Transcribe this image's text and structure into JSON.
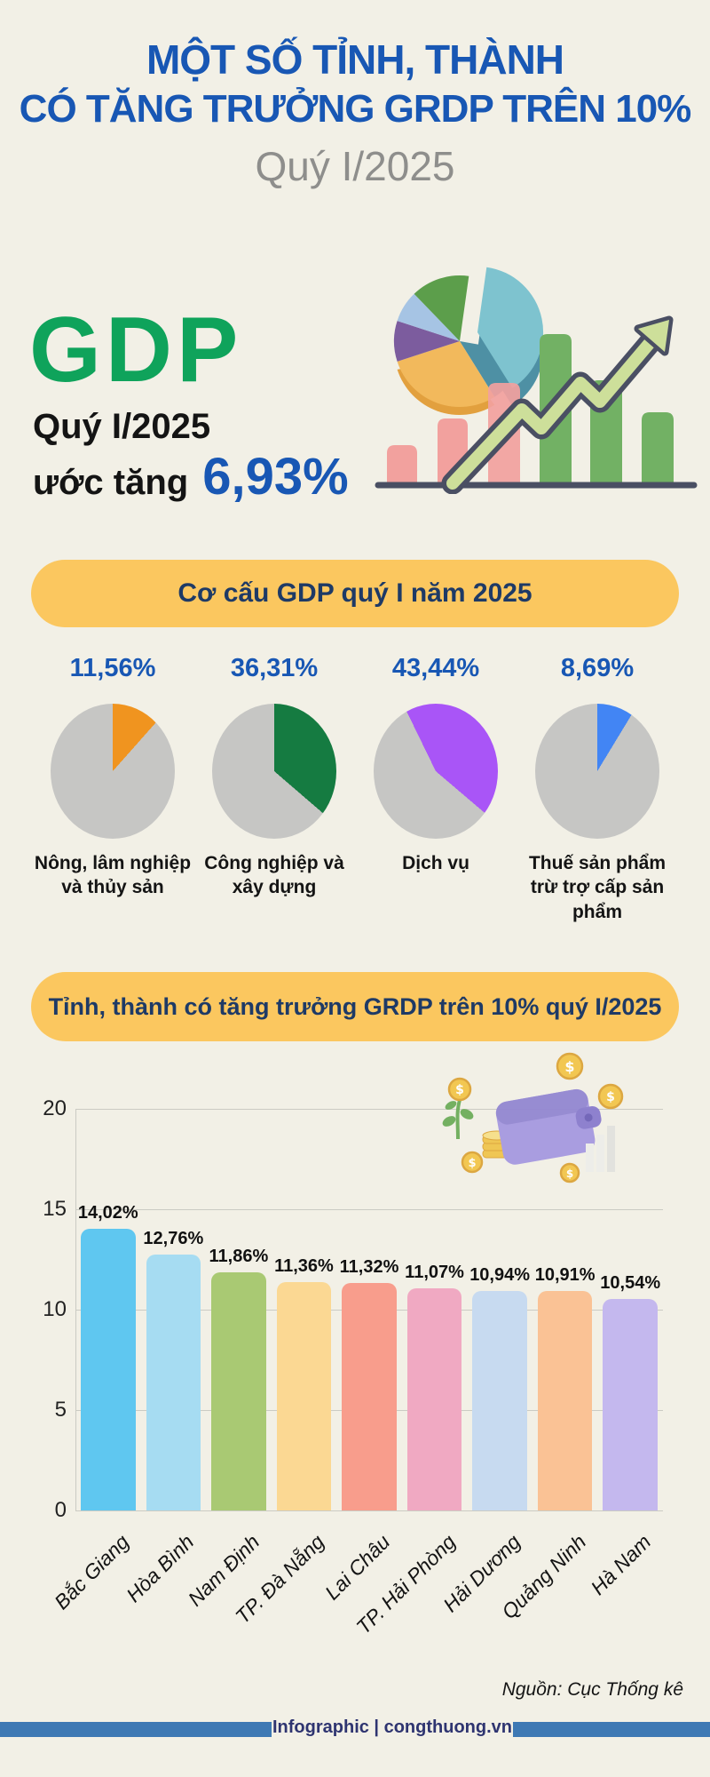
{
  "page": {
    "background": "#F2F0E6"
  },
  "header": {
    "title_line1": "MỘT SỐ TỈNH, THÀNH",
    "title_line2": "CÓ TĂNG TRƯỞNG GRDP TRÊN 10%",
    "subtitle": "Quý I/2025",
    "title_color": "#1857B4"
  },
  "gdp": {
    "label": "GDP",
    "period": "Quý I/2025",
    "growth_prefix": "ước tăng",
    "growth_value": "6,93%",
    "label_color": "#0FA35B",
    "value_color": "#1857B4"
  },
  "structure": {
    "banner": "Cơ cấu GDP quý I năm 2025",
    "banner_bg": "#FBC75F",
    "banner_text_color": "#1E3A66"
  },
  "grdp": {
    "banner": "Tỉnh, thành có tăng trưởng GRDP trên 10% quý I/2025"
  },
  "source": "Nguồn: Cục Thống kê",
  "footer": {
    "credit": "Infographic | congthuong.vn",
    "bar_color": "#3E79B4",
    "text_color": "#2E3470"
  },
  "icons": {
    "dollar": "$"
  },
  "chart_data": [
    {
      "type": "pie",
      "variant": "four-single-share-pies",
      "title": "Cơ cấu GDP quý I năm 2025",
      "categories": [
        "Nông, lâm nghiệp và thủy sản",
        "Công nghiệp và xây dựng",
        "Dịch vụ",
        "Thuế sản phẩm trừ trợ cấp sản phẩm"
      ],
      "values": [
        11.56,
        36.31,
        43.44,
        8.69
      ],
      "value_labels": [
        "11,56%",
        "36,31%",
        "43,44%",
        "8,69%"
      ],
      "slice_colors": [
        "#F0941F",
        "#157B41",
        "#A955F7",
        "#4285F4"
      ],
      "remainder_color": "#C6C6C4",
      "start_angles_deg": [
        0,
        0,
        -26,
        0
      ],
      "value_label_color": "#1857B4",
      "legend": false
    },
    {
      "type": "bar",
      "title": "Tỉnh, thành có tăng trưởng GRDP trên 10% quý I/2025",
      "categories": [
        "Bắc Giang",
        "Hòa Bình",
        "Nam Định",
        "TP. Đà Nẵng",
        "Lai Châu",
        "TP. Hải Phòng",
        "Hải Dương",
        "Quảng Ninh",
        "Hà Nam"
      ],
      "values": [
        14.02,
        12.76,
        11.86,
        11.36,
        11.32,
        11.07,
        10.94,
        10.91,
        10.54
      ],
      "value_labels": [
        "14,02%",
        "12,76%",
        "11,86%",
        "11,36%",
        "11,32%",
        "11,07%",
        "10,94%",
        "10,91%",
        "10,54%"
      ],
      "bar_colors": [
        "#5FC7F0",
        "#A6DCF2",
        "#A9C973",
        "#FBD893",
        "#F89D8C",
        "#F0A9C2",
        "#C7DAF0",
        "#FAC295",
        "#C4B8EE"
      ],
      "xlabel": "",
      "ylabel": "",
      "ylim": [
        0,
        20
      ],
      "yticks": [
        0,
        5,
        10,
        15,
        20
      ],
      "grid": true,
      "legend": false
    }
  ]
}
